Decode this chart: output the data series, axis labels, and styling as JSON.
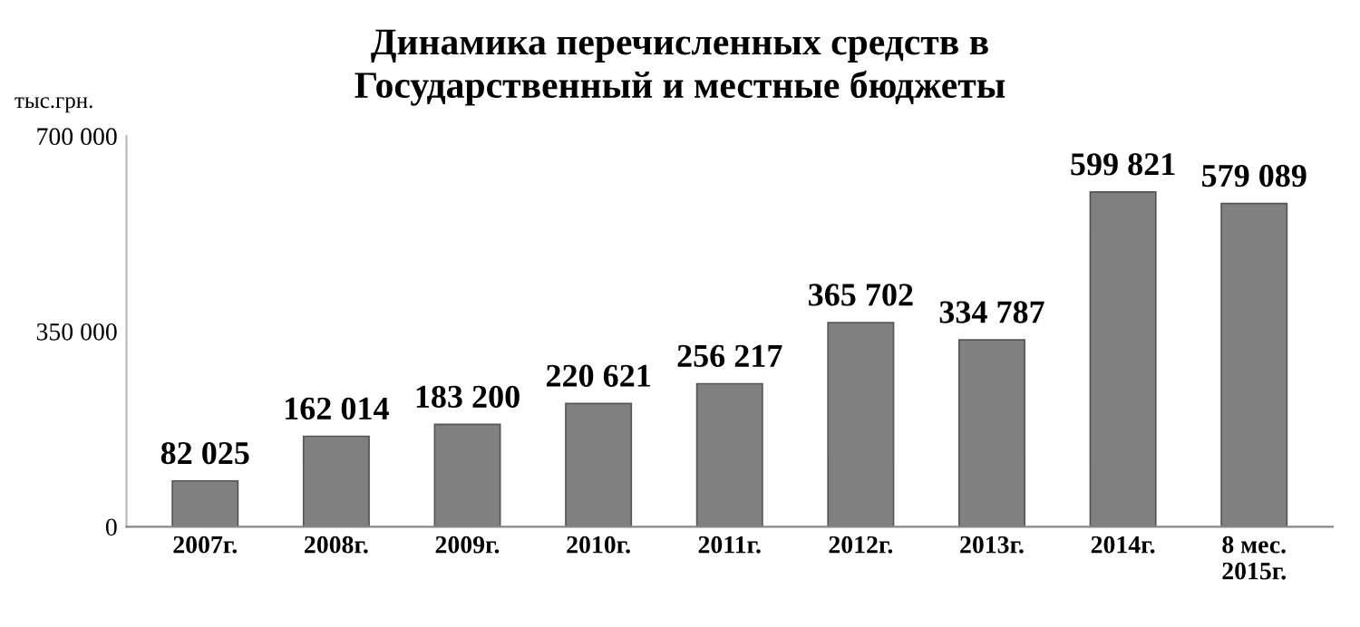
{
  "chart_data": {
    "type": "bar",
    "title": "Динамика перечисленных средств в\nГосударственный и местные бюджеты",
    "ylabel": "тыс.грн.",
    "categories": [
      "2007г.",
      "2008г.",
      "2009г.",
      "2010г.",
      "2011г.",
      "2012г.",
      "2013г.",
      "2014г.",
      "8 мес.\n2015г."
    ],
    "values": [
      82025,
      162014,
      183200,
      220621,
      256217,
      365702,
      334787,
      599821,
      579089
    ],
    "value_labels": [
      "82 025",
      "162 014",
      "183 200",
      "220 621",
      "256 217",
      "365 702",
      "334 787",
      "599 821",
      "579 089"
    ],
    "color": "#808080",
    "ylim": [
      0,
      700000
    ],
    "yticks": [
      0,
      {
        "value": 350000,
        "label": "350 000"
      },
      {
        "value": 700000,
        "label": "700 000"
      }
    ],
    "grid": false,
    "legend": false
  }
}
